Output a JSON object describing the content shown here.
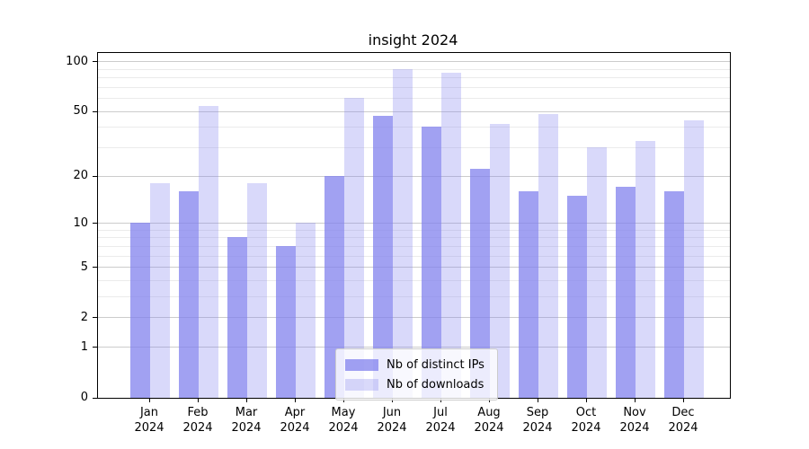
{
  "chart_data": {
    "type": "bar",
    "title": "insight 2024",
    "categories": [
      "Jan 2024",
      "Feb 2024",
      "Mar 2024",
      "Apr 2024",
      "May 2024",
      "Jun 2024",
      "Jul 2024",
      "Aug 2024",
      "Sep 2024",
      "Oct 2024",
      "Nov 2024",
      "Dec 2024"
    ],
    "series": [
      {
        "name": "Nb of distinct IPs",
        "color": "rgba(130,130,238,0.75)",
        "values": [
          10,
          16,
          8,
          7,
          20,
          47,
          40,
          22,
          16,
          15,
          17,
          16
        ]
      },
      {
        "name": "Nb of downloads",
        "color": "rgba(130,130,238,0.30)",
        "values": [
          18,
          54,
          18,
          10,
          60,
          90,
          85,
          42,
          48,
          30,
          33,
          44
        ]
      }
    ],
    "yscale": "log1p",
    "ylim": [
      0,
      112
    ],
    "y_major_ticks": [
      0,
      1,
      2,
      5,
      10,
      20,
      50,
      100
    ],
    "y_minor_ticks": [
      3,
      4,
      6,
      7,
      8,
      9,
      30,
      40,
      60,
      70,
      80,
      90
    ],
    "grid": true,
    "legend_position": "lower center",
    "colors": {
      "grid_major": "#cccccc",
      "grid_minor": "#ebebeb",
      "spine": "#000000",
      "background": "#ffffff"
    }
  }
}
